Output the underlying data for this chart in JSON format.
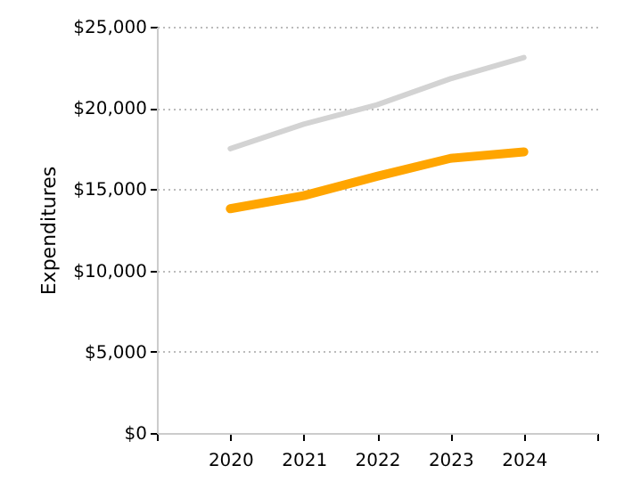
{
  "chart_data": {
    "type": "line",
    "ylabel": "Expenditures",
    "x": [
      2020,
      2021,
      2022,
      2023,
      2024
    ],
    "series": [
      {
        "color": "#d3d3d3",
        "values": [
          17500,
          19000,
          20200,
          21800,
          23100
        ]
      },
      {
        "color": "#ffa500",
        "values": [
          13800,
          14600,
          15800,
          16900,
          17300
        ]
      }
    ],
    "xlim": [
      2019,
      2025
    ],
    "xticks": [
      {
        "value": 2019,
        "label": null
      },
      2020,
      2021,
      2022,
      2023,
      2024,
      {
        "value": 2025,
        "label": null
      }
    ],
    "ylim": [
      0,
      25000
    ],
    "yticks": [
      {
        "value": 0,
        "label": "$0"
      },
      {
        "value": 5000,
        "label": "$5,000"
      },
      {
        "value": 10000,
        "label": "$10,000"
      },
      {
        "value": 15000,
        "label": "$15,000"
      },
      {
        "value": 20000,
        "label": "$20,000"
      },
      {
        "value": 25000,
        "label": "$25,000"
      }
    ],
    "grid": "y",
    "marker": "none",
    "line_style": "solid"
  }
}
